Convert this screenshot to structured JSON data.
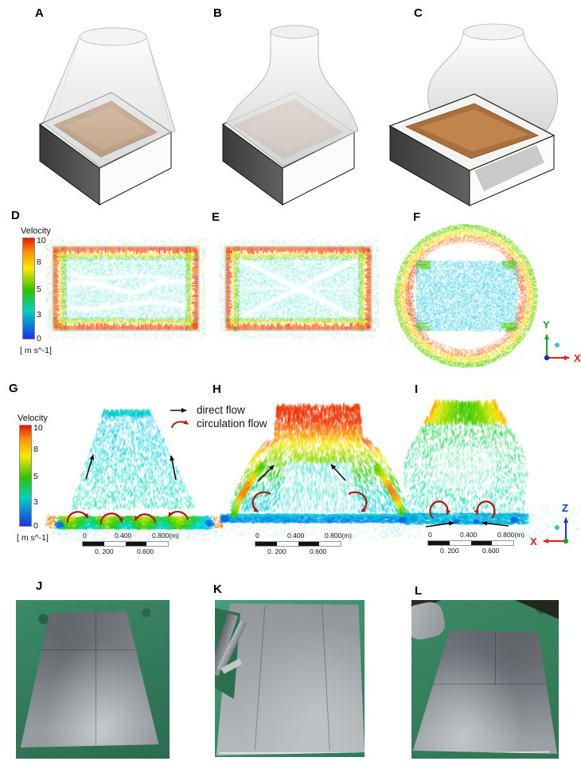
{
  "panels": {
    "a": "A",
    "b": "B",
    "c": "C",
    "d": "D",
    "e": "E",
    "f": "F",
    "g": "G",
    "h": "H",
    "i": "I",
    "j": "J",
    "k": "K",
    "l": "L"
  },
  "colorbar": {
    "title": "Velocity",
    "ticks": [
      "10",
      "8",
      "5",
      "3",
      "0"
    ],
    "units": "[ m s^-1]",
    "colors": [
      "#e61a00",
      "#ff9500",
      "#ffe800",
      "#2bc400",
      "#00d2c4",
      "#1a30e6"
    ]
  },
  "legend": {
    "direct_label": "direct flow",
    "circulation_label": "circulation flow",
    "direct_color": "#111111",
    "circulation_color": "#c01414"
  },
  "scale_bar": {
    "top_labels": [
      "0",
      "0.400",
      "0.800(m)"
    ],
    "bottom_labels": [
      "0. 200",
      "0.600"
    ]
  },
  "axis_triads": {
    "f": {
      "vertical_label": "Y",
      "horizontal_label": "X",
      "vertical_color": "#1fa32b",
      "horizontal_color": "#e02010"
    },
    "i": {
      "vertical_label": "Z",
      "horizontal_label": "X",
      "vertical_color": "#2030dd",
      "horizontal_color": "#e02010"
    }
  },
  "chart_data": {
    "type": "vector-field-figure",
    "velocity_colorbar": {
      "title": "Velocity",
      "ticks": [
        10,
        8,
        5,
        3,
        0
      ],
      "units": "m s^-1",
      "range": [
        0,
        10
      ]
    },
    "scale_bar_meters": [
      0,
      0.2,
      0.4,
      0.6,
      0.8
    ],
    "flow_legend": [
      "direct flow",
      "circulation flow"
    ]
  }
}
